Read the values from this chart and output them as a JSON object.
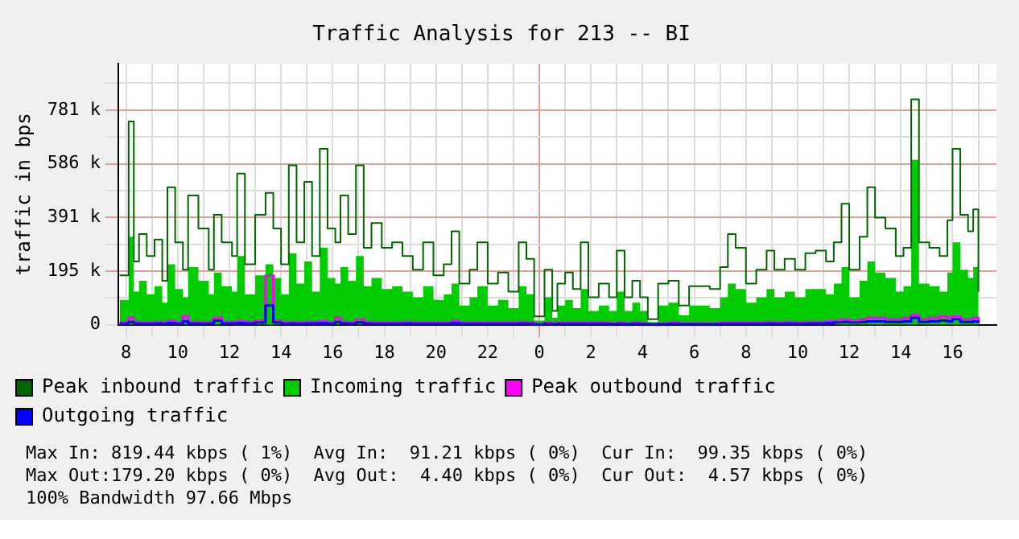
{
  "chart_data": {
    "type": "step",
    "title": "Traffic Analysis for 213 -- BI",
    "ylabel": "traffic in bps",
    "x": [
      "--01-01T07:45",
      "--01-01T08:06",
      "--01-01T08:18",
      "--01-01T08:30",
      "--01-01T08:48",
      "--01-01T09:06",
      "--01-01T09:24",
      "--01-01T09:36",
      "--01-01T09:54",
      "--01-01T10:12",
      "--01-01T10:24",
      "--01-01T10:48",
      "--01-01T11:12",
      "--01-01T11:24",
      "--01-01T11:42",
      "--01-01T12:06",
      "--01-01T12:18",
      "--01-01T12:36",
      "--01-01T13:00",
      "--01-01T13:24",
      "--01-01T13:42",
      "--01-01T14:00",
      "--01-01T14:18",
      "--01-01T14:36",
      "--01-01T14:54",
      "--01-01T15:12",
      "--01-01T15:30",
      "--01-01T15:48",
      "--01-01T16:06",
      "--01-01T16:18",
      "--01-01T16:36",
      "--01-01T16:54",
      "--01-01T17:12",
      "--01-01T17:30",
      "--01-01T17:54",
      "--01-01T18:18",
      "--01-01T18:42",
      "--01-01T19:06",
      "--01-01T19:30",
      "--01-01T19:54",
      "--01-01T20:18",
      "--01-01T20:36",
      "--01-01T20:54",
      "--01-01T21:18",
      "--01-01T21:36",
      "--01-01T22:00",
      "--01-01T22:24",
      "--01-01T22:48",
      "--01-01T23:12",
      "--01-01T23:30",
      "--01-01T23:48",
      "--01-02T00:12",
      "--01-02T00:30",
      "--01-02T00:42",
      "--01-02T01:00",
      "--01-02T01:18",
      "--01-02T01:36",
      "--01-02T01:54",
      "--01-02T02:18",
      "--01-02T02:42",
      "--01-02T03:00",
      "--01-02T03:18",
      "--01-02T03:36",
      "--01-02T03:54",
      "--01-02T04:12",
      "--01-02T04:36",
      "--01-02T05:00",
      "--01-02T05:24",
      "--01-02T05:48",
      "--01-02T06:12",
      "--01-02T06:36",
      "--01-02T07:00",
      "--01-02T07:18",
      "--01-02T07:36",
      "--01-02T08:00",
      "--01-02T08:24",
      "--01-02T08:48",
      "--01-02T09:06",
      "--01-02T09:30",
      "--01-02T09:54",
      "--01-02T10:18",
      "--01-02T10:42",
      "--01-02T11:06",
      "--01-02T11:24",
      "--01-02T11:42",
      "--01-02T12:00",
      "--01-02T12:24",
      "--01-02T12:42",
      "--01-02T13:00",
      "--01-02T13:24",
      "--01-02T13:48",
      "--01-02T14:06",
      "--01-02T14:24",
      "--01-02T14:42",
      "--01-02T15:06",
      "--01-02T15:30",
      "--01-02T15:48",
      "--01-02T16:00",
      "--01-02T16:18",
      "--01-02T16:36",
      "--01-02T16:48",
      "--01-02T17:00"
    ],
    "series": [
      {
        "name": "Peak inbound traffic",
        "color": "#006600",
        "values": [
          180,
          740,
          230,
          330,
          250,
          310,
          160,
          500,
          300,
          200,
          470,
          350,
          200,
          400,
          300,
          250,
          550,
          220,
          400,
          480,
          350,
          220,
          580,
          300,
          520,
          250,
          640,
          350,
          300,
          470,
          330,
          580,
          280,
          370,
          280,
          300,
          250,
          200,
          300,
          180,
          220,
          340,
          150,
          200,
          300,
          150,
          190,
          120,
          300,
          240,
          30,
          200,
          50,
          150,
          190,
          130,
          300,
          100,
          150,
          100,
          270,
          100,
          160,
          100,
          20,
          150,
          160,
          70,
          140,
          140,
          130,
          210,
          330,
          280,
          150,
          200,
          270,
          200,
          240,
          200,
          260,
          270,
          230,
          300,
          440,
          200,
          320,
          500,
          390,
          350,
          250,
          280,
          820,
          300,
          280,
          250,
          380,
          640,
          400,
          340,
          420,
          120
        ]
      },
      {
        "name": "Incoming traffic",
        "type": "area",
        "color": "#00cc00",
        "values": [
          90,
          320,
          120,
          160,
          110,
          140,
          80,
          220,
          130,
          100,
          210,
          160,
          110,
          190,
          140,
          120,
          250,
          110,
          180,
          220,
          170,
          110,
          260,
          150,
          230,
          120,
          280,
          170,
          150,
          210,
          160,
          250,
          140,
          170,
          130,
          140,
          120,
          100,
          140,
          90,
          110,
          150,
          70,
          100,
          140,
          70,
          90,
          60,
          140,
          110,
          15,
          100,
          25,
          70,
          90,
          60,
          130,
          50,
          70,
          50,
          120,
          50,
          80,
          50,
          10,
          70,
          80,
          35,
          70,
          70,
          60,
          100,
          150,
          130,
          80,
          100,
          130,
          100,
          120,
          100,
          130,
          130,
          110,
          150,
          210,
          100,
          160,
          230,
          190,
          170,
          120,
          140,
          600,
          150,
          140,
          120,
          190,
          300,
          200,
          170,
          210,
          60
        ]
      },
      {
        "name": "Peak outbound traffic",
        "color": "#ff00ff",
        "values": [
          8,
          25,
          10,
          8,
          8,
          10,
          8,
          15,
          8,
          30,
          10,
          8,
          10,
          25,
          10,
          10,
          12,
          10,
          15,
          179,
          15,
          8,
          10,
          8,
          10,
          10,
          12,
          8,
          25,
          10,
          8,
          20,
          10,
          8,
          8,
          8,
          10,
          8,
          8,
          8,
          8,
          15,
          8,
          8,
          8,
          8,
          8,
          8,
          10,
          8,
          2,
          8,
          5,
          8,
          8,
          8,
          8,
          8,
          8,
          5,
          8,
          5,
          8,
          5,
          2,
          5,
          8,
          5,
          5,
          5,
          5,
          8,
          8,
          8,
          8,
          8,
          10,
          8,
          10,
          8,
          10,
          10,
          12,
          15,
          20,
          15,
          20,
          25,
          25,
          20,
          20,
          25,
          35,
          20,
          25,
          30,
          25,
          30,
          20,
          20,
          25,
          10
        ]
      },
      {
        "name": "Outgoing traffic",
        "color": "#0000ff",
        "values": [
          4,
          10,
          5,
          4,
          4,
          5,
          4,
          6,
          4,
          12,
          5,
          4,
          5,
          15,
          5,
          5,
          6,
          5,
          8,
          70,
          8,
          4,
          5,
          4,
          5,
          5,
          6,
          4,
          10,
          5,
          4,
          8,
          5,
          4,
          4,
          4,
          5,
          4,
          4,
          4,
          4,
          6,
          4,
          4,
          4,
          4,
          4,
          4,
          5,
          4,
          1,
          4,
          2,
          4,
          4,
          4,
          4,
          4,
          4,
          2,
          4,
          2,
          4,
          2,
          1,
          2,
          4,
          2,
          2,
          2,
          2,
          4,
          4,
          4,
          4,
          4,
          5,
          4,
          5,
          4,
          5,
          5,
          6,
          8,
          10,
          8,
          10,
          12,
          12,
          10,
          10,
          12,
          25,
          10,
          12,
          15,
          12,
          20,
          10,
          10,
          12,
          5
        ]
      }
    ],
    "xlim": [
      "--01-01T07:42",
      "--01-02T17:42"
    ],
    "xticks": [
      {
        "value": "--01-01T08:00",
        "label": "8"
      },
      {
        "value": "--01-01T09:00",
        "label": null
      },
      {
        "value": "--01-01T10:00",
        "label": "10"
      },
      {
        "value": "--01-01T11:00",
        "label": null
      },
      {
        "value": "--01-01T12:00",
        "label": "12"
      },
      {
        "value": "--01-01T13:00",
        "label": null
      },
      {
        "value": "--01-01T14:00",
        "label": "14"
      },
      {
        "value": "--01-01T15:00",
        "label": null
      },
      {
        "value": "--01-01T16:00",
        "label": "16"
      },
      {
        "value": "--01-01T17:00",
        "label": null
      },
      {
        "value": "--01-01T18:00",
        "label": "18"
      },
      {
        "value": "--01-01T19:00",
        "label": null
      },
      {
        "value": "--01-01T20:00",
        "label": "20"
      },
      {
        "value": "--01-01T21:00",
        "label": null
      },
      {
        "value": "--01-01T22:00",
        "label": "22"
      },
      {
        "value": "--01-01T23:00",
        "label": null
      },
      {
        "value": "--01-02T00:00",
        "label": "0"
      },
      {
        "value": "--01-02T01:00",
        "label": null
      },
      {
        "value": "--01-02T02:00",
        "label": "2"
      },
      {
        "value": "--01-02T03:00",
        "label": null
      },
      {
        "value": "--01-02T04:00",
        "label": "4"
      },
      {
        "value": "--01-02T05:00",
        "label": null
      },
      {
        "value": "--01-02T06:00",
        "label": "6"
      },
      {
        "value": "--01-02T07:00",
        "label": null
      },
      {
        "value": "--01-02T08:00",
        "label": "8"
      },
      {
        "value": "--01-02T09:00",
        "label": null
      },
      {
        "value": "--01-02T10:00",
        "label": "10"
      },
      {
        "value": "--01-02T11:00",
        "label": null
      },
      {
        "value": "--01-02T12:00",
        "label": "12"
      },
      {
        "value": "--01-02T13:00",
        "label": null
      },
      {
        "value": "--01-02T14:00",
        "label": "14"
      },
      {
        "value": "--01-02T15:00",
        "label": null
      },
      {
        "value": "--01-02T16:00",
        "label": "16"
      },
      {
        "value": "--01-02T17:00",
        "label": null
      }
    ],
    "ylim": [
      0,
      950
    ],
    "yticks": [
      0,
      {
        "value": 97.66,
        "label": null
      },
      {
        "value": 195.3,
        "label": "195 k"
      },
      {
        "value": 292.97,
        "label": null
      },
      {
        "value": 390.6,
        "label": "391 k"
      },
      {
        "value": 488.3,
        "label": null
      },
      {
        "value": 585.9,
        "label": "586 k"
      },
      {
        "value": 683.6,
        "label": null
      },
      {
        "value": 781.3,
        "label": "781 k"
      },
      {
        "value": 878.9,
        "label": null
      }
    ],
    "grid": true,
    "legend": "bottom",
    "marker": "none",
    "annotations": [
      "Max In: 819.44 kbps ( 1%)  Avg In:  91.21 kbps ( 0%)  Cur In:  99.35 kbps ( 0%)",
      "Max Out:179.20 kbps ( 0%)  Avg Out:  4.40 kbps ( 0%)  Cur Out:  4.57 kbps ( 0%)",
      "100% Bandwidth 97.66 Mbps"
    ]
  }
}
